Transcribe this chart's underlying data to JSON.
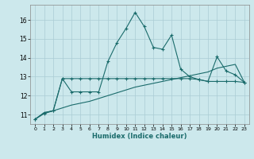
{
  "xlabel": "Humidex (Indice chaleur)",
  "bg_color": "#cce8ec",
  "grid_color": "#aaccd4",
  "line_color": "#1a6b6b",
  "xlim": [
    -0.5,
    23.5
  ],
  "ylim": [
    10.5,
    16.8
  ],
  "yticks": [
    11,
    12,
    13,
    14,
    15,
    16
  ],
  "xticks": [
    0,
    1,
    2,
    3,
    4,
    5,
    6,
    7,
    8,
    9,
    10,
    11,
    12,
    13,
    14,
    15,
    16,
    17,
    18,
    19,
    20,
    21,
    22,
    23
  ],
  "line1_x": [
    0,
    1,
    2,
    3,
    4,
    5,
    6,
    7,
    8,
    9,
    10,
    11,
    12,
    13,
    14,
    15,
    16,
    17,
    18,
    19,
    20,
    21,
    22,
    23
  ],
  "line1_y": [
    10.75,
    11.05,
    11.2,
    12.9,
    12.2,
    12.2,
    12.2,
    12.2,
    13.8,
    14.8,
    15.55,
    16.4,
    15.65,
    14.55,
    14.45,
    15.2,
    13.4,
    13.0,
    12.85,
    12.75,
    14.05,
    13.3,
    13.1,
    12.7
  ],
  "line2_x": [
    0,
    1,
    2,
    3,
    4,
    5,
    6,
    7,
    8,
    9,
    10,
    11,
    12,
    13,
    14,
    15,
    16,
    17,
    18,
    19,
    20,
    21,
    22,
    23
  ],
  "line2_y": [
    10.75,
    11.1,
    11.2,
    12.9,
    12.9,
    12.9,
    12.9,
    12.9,
    12.9,
    12.9,
    12.9,
    12.9,
    12.9,
    12.9,
    12.9,
    12.9,
    12.9,
    12.9,
    12.85,
    12.75,
    12.75,
    12.75,
    12.75,
    12.7
  ],
  "line3_x": [
    0,
    1,
    2,
    3,
    4,
    5,
    6,
    7,
    8,
    9,
    10,
    11,
    12,
    13,
    14,
    15,
    16,
    17,
    18,
    19,
    20,
    21,
    22,
    23
  ],
  "line3_y": [
    10.75,
    11.1,
    11.2,
    11.35,
    11.5,
    11.6,
    11.7,
    11.85,
    12.0,
    12.15,
    12.3,
    12.45,
    12.55,
    12.65,
    12.75,
    12.85,
    12.95,
    13.05,
    13.15,
    13.25,
    13.45,
    13.55,
    13.65,
    12.7
  ]
}
